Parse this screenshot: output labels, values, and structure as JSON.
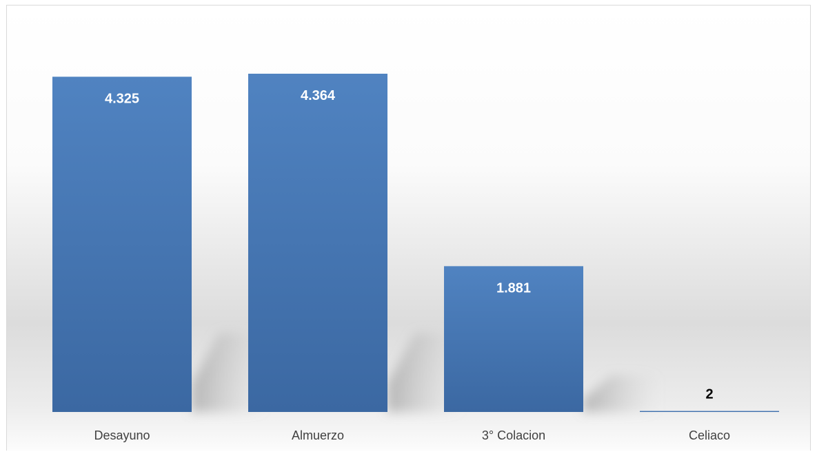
{
  "chart_data": {
    "type": "bar",
    "categories": [
      "Desayuno",
      "Almuerzo",
      "3° Colacion",
      "Celiaco"
    ],
    "values": [
      4325,
      4364,
      1881,
      2
    ],
    "data_labels": [
      "4.325",
      "4.364",
      "1.881",
      "2"
    ],
    "title": "",
    "xlabel": "",
    "ylabel": "",
    "ylim": [
      0,
      4500
    ],
    "grid": false,
    "legend": "none",
    "colors": {
      "bar_top": "#5083c1",
      "bar_bottom": "#3b68a2",
      "inside_label": "#ffffff",
      "outside_label": "#000000",
      "category_label": "#404040",
      "frame": "#d9d9d9",
      "background_top": "#ffffff",
      "background_mid": "#dedede"
    }
  }
}
